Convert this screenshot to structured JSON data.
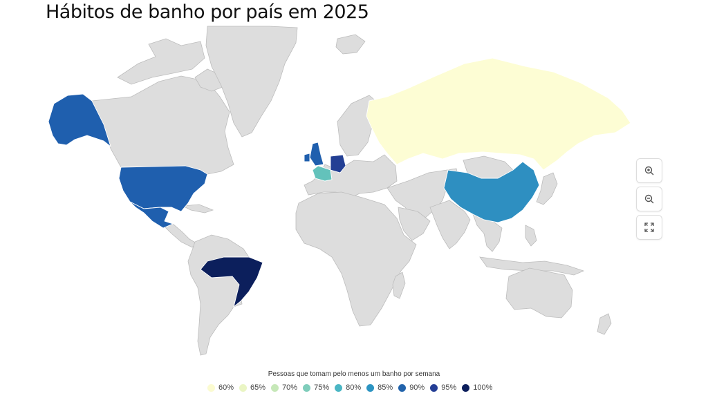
{
  "title": "Hábitos de banho por país em 2025",
  "map": {
    "base_color": "#dddddd",
    "border_color": "#ffffff",
    "regions": [
      {
        "name": "Russia",
        "value": 60,
        "color": "#fdfdd4"
      },
      {
        "name": "China",
        "value": 85,
        "color": "#2e8fc1"
      },
      {
        "name": "United States",
        "value": 90,
        "color": "#1f5fae"
      },
      {
        "name": "Alaska",
        "value": 90,
        "color": "#1f5fae"
      },
      {
        "name": "Mexico",
        "value": 90,
        "color": "#1f5fae"
      },
      {
        "name": "Brazil",
        "value": 100,
        "color": "#0c1f5c"
      },
      {
        "name": "United Kingdom",
        "value": 90,
        "color": "#1f5fae"
      },
      {
        "name": "Germany",
        "value": 95,
        "color": "#233f94"
      },
      {
        "name": "France",
        "value": 75,
        "color": "#63c2bb"
      }
    ]
  },
  "controls": {
    "zoom_in": "zoom-in",
    "zoom_out": "zoom-out",
    "fullscreen": "fullscreen"
  },
  "legend": {
    "title": "Pessoas que tomam pelo menos um banho por semana",
    "items": [
      {
        "label": "60%",
        "color": "#fbfbd0"
      },
      {
        "label": "65%",
        "color": "#eaf5c4"
      },
      {
        "label": "70%",
        "color": "#c6e8b8"
      },
      {
        "label": "75%",
        "color": "#7fcdbb"
      },
      {
        "label": "80%",
        "color": "#4bb6c4"
      },
      {
        "label": "85%",
        "color": "#2c94c2"
      },
      {
        "label": "90%",
        "color": "#2263ab"
      },
      {
        "label": "95%",
        "color": "#243e95"
      },
      {
        "label": "100%",
        "color": "#0c1f5c"
      }
    ]
  }
}
